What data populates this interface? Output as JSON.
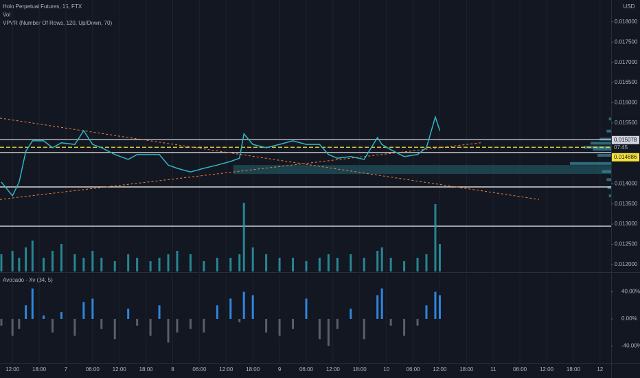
{
  "chart_data": [
    {
      "type": "line",
      "title": "Holo Perpetual Futures, 15, FTX",
      "indicators": [
        "Vol",
        "VPVR (Number Of Rows, 120, Up/Down, 70)"
      ],
      "axis_unit": "USD",
      "x": [
        -2.5,
        0,
        1.5,
        3,
        4.5,
        7,
        9,
        11,
        14,
        16,
        18,
        20,
        23,
        26,
        28,
        31,
        33,
        35,
        37,
        40,
        43,
        46,
        49,
        51,
        52,
        54,
        57,
        60,
        63,
        66,
        69,
        71,
        73,
        76,
        79,
        82,
        83,
        85,
        88,
        91,
        93,
        95,
        96
      ],
      "values": [
        0.01404,
        0.0137,
        0.01404,
        0.0148,
        0.01506,
        0.01506,
        0.01489,
        0.01501,
        0.01497,
        0.01531,
        0.01497,
        0.01489,
        0.01472,
        0.0146,
        0.01472,
        0.01472,
        0.01472,
        0.01446,
        0.01438,
        0.01429,
        0.01438,
        0.01446,
        0.01455,
        0.01463,
        0.01523,
        0.01497,
        0.01489,
        0.01497,
        0.01506,
        0.01497,
        0.01497,
        0.01472,
        0.01463,
        0.01467,
        0.0146,
        0.01514,
        0.01497,
        0.01484,
        0.01467,
        0.01472,
        0.01489,
        0.01565,
        0.01531
      ],
      "color": "#2fb5c4",
      "xlim": [
        -2.8,
        134.5
      ],
      "ylim": [
        0.01183,
        0.01854
      ],
      "yticks": [
        {
          "value": 0.018,
          "label": "0.018000"
        },
        {
          "value": 0.0175,
          "label": "0.017500"
        },
        {
          "value": 0.017,
          "label": "0.017000"
        },
        {
          "value": 0.0165,
          "label": "0.016500"
        },
        {
          "value": 0.016,
          "label": "0.016000"
        },
        {
          "value": 0.0155,
          "label": "0.015500"
        },
        {
          "value": 0.014,
          "label": "0.014000"
        },
        {
          "value": 0.0135,
          "label": "0.013500"
        },
        {
          "value": 0.013,
          "label": "0.013000"
        },
        {
          "value": 0.0125,
          "label": "0.012500"
        },
        {
          "value": 0.012,
          "label": "0.012000"
        }
      ],
      "hlines": [
        {
          "value": 0.01509,
          "color": "#d1d4dc"
        },
        {
          "value": 0.0149,
          "color": "#f5e33b"
        },
        {
          "value": 0.01477,
          "color": "#ffffff"
        },
        {
          "value": 0.01392,
          "color": "#ffffff"
        },
        {
          "value": 0.01295,
          "color": "#ffffff"
        }
      ],
      "trendlines": [
        {
          "x": [
            -2.8,
            118.3
          ],
          "y": [
            0.01562,
            0.01361
          ],
          "color": "#f2863a"
        },
        {
          "x": [
            -2.8,
            105.2
          ],
          "y": [
            0.01361,
            0.01501
          ],
          "color": "#f2863a"
        }
      ],
      "zone": {
        "x": [
          49.6,
          134.5
        ],
        "y": [
          0.01424,
          0.01446
        ],
        "color": "#1f4e5a"
      },
      "profile": {
        "prices": [
          0.0156,
          0.0153,
          0.0151,
          0.015,
          0.0149,
          0.01485,
          0.0147,
          0.0145,
          0.0143,
          0.0141,
          0.0139,
          0.0137
        ],
        "values": [
          5,
          10,
          25,
          45,
          60,
          40,
          30,
          90,
          20,
          10,
          8,
          5
        ],
        "color": "#3a8fa0"
      },
      "price_labels": [
        0.015078,
        0.014886
      ],
      "countdown": "07:45"
    },
    {
      "type": "volume",
      "xlim": [
        -2.8,
        134.5
      ],
      "ylim": [
        0,
        102
      ],
      "color": "#2a9aa8",
      "x": [
        -2.5,
        0,
        1.5,
        3,
        4.5,
        7,
        9,
        11,
        14,
        16,
        18,
        20,
        23,
        26,
        28,
        31,
        33,
        35,
        37,
        40,
        43,
        46,
        49,
        51,
        52,
        54,
        57,
        60,
        63,
        66,
        69,
        71,
        73,
        76,
        79,
        82,
        83,
        85,
        88,
        91,
        93,
        95,
        96
      ],
      "values": [
        25,
        30,
        20,
        35,
        45,
        20,
        30,
        40,
        25,
        20,
        30,
        20,
        15,
        25,
        20,
        15,
        20,
        25,
        30,
        25,
        15,
        20,
        20,
        25,
        100,
        35,
        25,
        20,
        20,
        15,
        20,
        25,
        20,
        25,
        20,
        30,
        35,
        20,
        15,
        20,
        25,
        98,
        40
      ]
    },
    {
      "type": "oscillator",
      "title": "Avocado - Xv (34, 5)",
      "xlim": [
        -2.8,
        134.5
      ],
      "ylim": [
        -65,
        67
      ],
      "colors": [
        "#2e86de",
        "#5a5e6b"
      ],
      "x": [
        -2.5,
        0,
        1.5,
        3,
        4.5,
        7,
        9,
        11,
        14,
        16,
        18,
        20,
        23,
        26,
        28,
        31,
        33,
        35,
        37,
        40,
        43,
        46,
        49,
        51,
        52,
        54,
        57,
        60,
        63,
        66,
        69,
        71,
        73,
        76,
        79,
        82,
        83,
        85,
        88,
        91,
        93,
        95,
        96
      ],
      "values": [
        -10,
        -25,
        -15,
        20,
        45,
        5,
        -20,
        10,
        -25,
        25,
        30,
        -15,
        -30,
        15,
        -10,
        -25,
        20,
        -35,
        -20,
        -15,
        -20,
        20,
        30,
        -5,
        40,
        35,
        -20,
        -25,
        -15,
        30,
        -30,
        -40,
        -15,
        15,
        -30,
        35,
        45,
        -10,
        -25,
        -10,
        20,
        40,
        35
      ],
      "yticks": [
        {
          "value": 40,
          "label": "40.00%"
        },
        {
          "value": 0,
          "label": "0.00%"
        },
        {
          "value": -40,
          "label": "-40.00%"
        }
      ],
      "xticks": [
        {
          "value": 0,
          "label": "12:00"
        },
        {
          "value": 6,
          "label": "18:00"
        },
        {
          "value": 12,
          "label": "7"
        },
        {
          "value": 18,
          "label": "06:00"
        },
        {
          "value": 24,
          "label": "12:00"
        },
        {
          "value": 30,
          "label": "18:00"
        },
        {
          "value": 36,
          "label": "8"
        },
        {
          "value": 42,
          "label": "06:00"
        },
        {
          "value": 48,
          "label": "12:00"
        },
        {
          "value": 54,
          "label": "18:00"
        },
        {
          "value": 60,
          "label": "9"
        },
        {
          "value": 66,
          "label": "06:00"
        },
        {
          "value": 72,
          "label": "12:00"
        },
        {
          "value": 78,
          "label": "18:00"
        },
        {
          "value": 84,
          "label": "10"
        },
        {
          "value": 90,
          "label": "06:00"
        },
        {
          "value": 96,
          "label": "12:00"
        },
        {
          "value": 102,
          "label": "18:00"
        },
        {
          "value": 108,
          "label": "11"
        },
        {
          "value": 114,
          "label": "06:00"
        },
        {
          "value": 120,
          "label": "12:00"
        },
        {
          "value": 126,
          "label": "18:00"
        },
        {
          "value": 132,
          "label": "12"
        }
      ]
    }
  ]
}
